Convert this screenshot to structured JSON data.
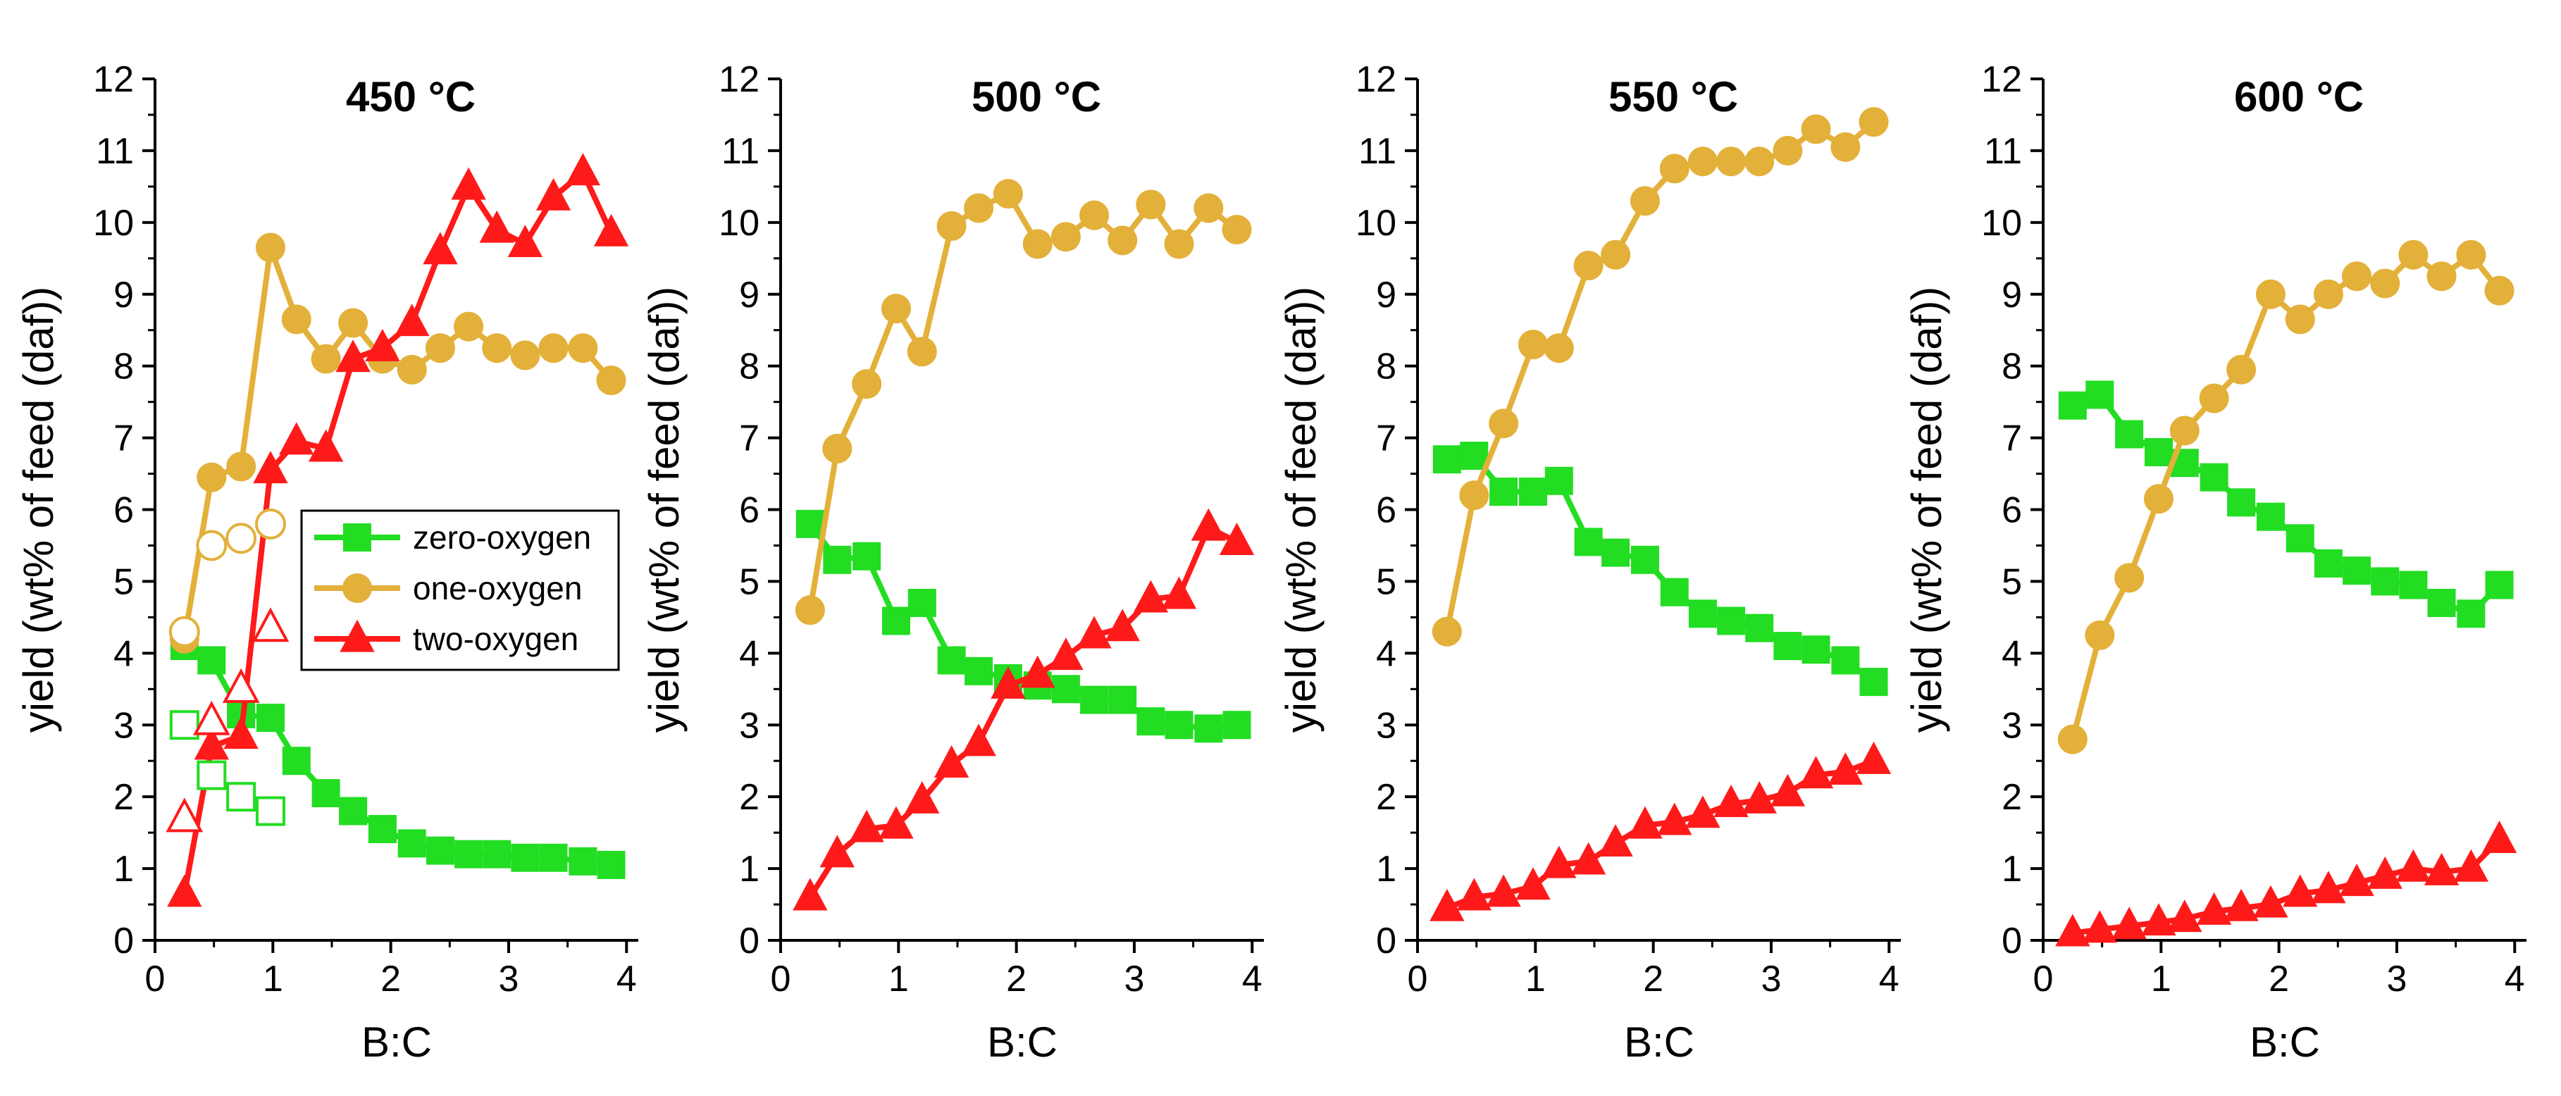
{
  "chart_data": [
    {
      "type": "line",
      "title": "450 °C",
      "xlabel": "B:C",
      "ylabel": "yield (wt% of feed (daf))",
      "xlim": [
        0,
        4.1
      ],
      "ylim": [
        0,
        12
      ],
      "xticks": [
        "0",
        "1",
        "2",
        "3",
        "4"
      ],
      "yticks": [
        "0",
        "1",
        "2",
        "3",
        "4",
        "5",
        "6",
        "7",
        "8",
        "9",
        "10",
        "11",
        "12"
      ],
      "legend": {
        "position": "center-left",
        "entries": [
          "zero-oxygen",
          "one-oxygen",
          "two-oxygen"
        ]
      },
      "series": [
        {
          "name": "zero-oxygen",
          "color": "#22dd22",
          "marker": "square",
          "x": [
            0.25,
            0.48,
            0.73,
            0.98,
            1.2,
            1.45,
            1.68,
            1.93,
            2.18,
            2.42,
            2.66,
            2.9,
            3.14,
            3.38,
            3.63,
            3.87
          ],
          "y": [
            4.1,
            3.9,
            3.15,
            3.1,
            2.5,
            2.05,
            1.8,
            1.55,
            1.35,
            1.25,
            1.2,
            1.2,
            1.15,
            1.15,
            1.1,
            1.05
          ]
        },
        {
          "name": "one-oxygen",
          "color": "#e3b03a",
          "marker": "circle",
          "x": [
            0.25,
            0.48,
            0.73,
            0.98,
            1.2,
            1.45,
            1.68,
            1.93,
            2.18,
            2.42,
            2.66,
            2.9,
            3.14,
            3.38,
            3.63,
            3.87
          ],
          "y": [
            4.2,
            6.45,
            6.6,
            9.65,
            8.65,
            8.1,
            8.6,
            8.1,
            7.95,
            8.25,
            8.55,
            8.25,
            8.15,
            8.25,
            8.25,
            7.8
          ]
        },
        {
          "name": "two-oxygen",
          "color": "#ff1a1a",
          "marker": "triangle",
          "x": [
            0.25,
            0.48,
            0.73,
            0.98,
            1.2,
            1.45,
            1.68,
            1.93,
            2.18,
            2.42,
            2.66,
            2.9,
            3.14,
            3.38,
            3.63,
            3.87
          ],
          "y": [
            0.65,
            2.7,
            2.85,
            6.55,
            6.95,
            6.85,
            8.1,
            8.25,
            8.6,
            9.6,
            10.5,
            9.9,
            9.7,
            10.35,
            10.7,
            9.85
          ]
        },
        {
          "name": "zero-oxygen (open)",
          "color": "#22dd22",
          "marker": "square",
          "hollow": true,
          "x": [
            0.25,
            0.48,
            0.73,
            0.98
          ],
          "y": [
            3.0,
            2.3,
            2.0,
            1.8
          ]
        },
        {
          "name": "one-oxygen (open)",
          "color": "#e3b03a",
          "marker": "circle",
          "hollow": true,
          "x": [
            0.25,
            0.48,
            0.73,
            0.98
          ],
          "y": [
            4.3,
            5.5,
            5.6,
            5.8
          ]
        },
        {
          "name": "two-oxygen (open)",
          "color": "#ff1a1a",
          "marker": "triangle",
          "hollow": true,
          "x": [
            0.25,
            0.48,
            0.73,
            0.98
          ],
          "y": [
            1.7,
            3.05,
            3.5,
            4.35
          ]
        }
      ]
    },
    {
      "type": "line",
      "title": "500 °C",
      "xlabel": "B:C",
      "ylabel": "yield (wt% of feed (daf))",
      "xlim": [
        0,
        4.1
      ],
      "ylim": [
        0,
        12
      ],
      "xticks": [
        "0",
        "1",
        "2",
        "3",
        "4"
      ],
      "yticks": [
        "0",
        "1",
        "2",
        "3",
        "4",
        "5",
        "6",
        "7",
        "8",
        "9",
        "10",
        "11",
        "12"
      ],
      "series": [
        {
          "name": "zero-oxygen",
          "color": "#22dd22",
          "marker": "square",
          "x": [
            0.25,
            0.48,
            0.73,
            0.98,
            1.2,
            1.45,
            1.68,
            1.93,
            2.18,
            2.42,
            2.66,
            2.9,
            3.14,
            3.38,
            3.63,
            3.87
          ],
          "y": [
            5.8,
            5.3,
            5.35,
            4.45,
            4.7,
            3.9,
            3.75,
            3.65,
            3.55,
            3.5,
            3.35,
            3.35,
            3.05,
            3.0,
            2.95,
            3.0
          ]
        },
        {
          "name": "one-oxygen",
          "color": "#e3b03a",
          "marker": "circle",
          "x": [
            0.25,
            0.48,
            0.73,
            0.98,
            1.2,
            1.45,
            1.68,
            1.93,
            2.18,
            2.42,
            2.66,
            2.9,
            3.14,
            3.38,
            3.63,
            3.87
          ],
          "y": [
            4.6,
            6.85,
            7.75,
            8.8,
            8.2,
            9.95,
            10.2,
            10.4,
            9.7,
            9.8,
            10.1,
            9.75,
            10.25,
            9.7,
            10.2,
            9.9
          ]
        },
        {
          "name": "two-oxygen",
          "color": "#ff1a1a",
          "marker": "triangle",
          "x": [
            0.25,
            0.48,
            0.73,
            0.98,
            1.2,
            1.45,
            1.68,
            1.93,
            2.18,
            2.42,
            2.66,
            2.9,
            3.14,
            3.38,
            3.63,
            3.87
          ],
          "y": [
            0.6,
            1.2,
            1.55,
            1.6,
            1.95,
            2.45,
            2.75,
            3.55,
            3.7,
            3.95,
            4.25,
            4.35,
            4.75,
            4.8,
            5.75,
            5.55
          ]
        }
      ]
    },
    {
      "type": "line",
      "title": "550 °C",
      "xlabel": "B:C",
      "ylabel": "yield (wt% of feed (daf))",
      "xlim": [
        0,
        4.1
      ],
      "ylim": [
        0,
        12
      ],
      "xticks": [
        "0",
        "1",
        "2",
        "3",
        "4"
      ],
      "yticks": [
        "0",
        "1",
        "2",
        "3",
        "4",
        "5",
        "6",
        "7",
        "8",
        "9",
        "10",
        "11",
        "12"
      ],
      "series": [
        {
          "name": "zero-oxygen",
          "color": "#22dd22",
          "marker": "square",
          "x": [
            0.25,
            0.48,
            0.73,
            0.98,
            1.2,
            1.45,
            1.68,
            1.93,
            2.18,
            2.42,
            2.66,
            2.9,
            3.14,
            3.38,
            3.63,
            3.87
          ],
          "y": [
            6.7,
            6.75,
            6.25,
            6.25,
            6.4,
            5.55,
            5.4,
            5.3,
            4.85,
            4.55,
            4.45,
            4.35,
            4.1,
            4.05,
            3.9,
            3.6
          ]
        },
        {
          "name": "one-oxygen",
          "color": "#e3b03a",
          "marker": "circle",
          "x": [
            0.25,
            0.48,
            0.73,
            0.98,
            1.2,
            1.45,
            1.68,
            1.93,
            2.18,
            2.42,
            2.66,
            2.9,
            3.14,
            3.38,
            3.63,
            3.87
          ],
          "y": [
            4.3,
            6.2,
            7.2,
            8.3,
            8.25,
            9.4,
            9.55,
            10.3,
            10.75,
            10.85,
            10.85,
            10.85,
            11.0,
            11.3,
            11.05,
            11.4
          ]
        },
        {
          "name": "two-oxygen",
          "color": "#ff1a1a",
          "marker": "triangle",
          "x": [
            0.25,
            0.48,
            0.73,
            0.98,
            1.2,
            1.45,
            1.68,
            1.93,
            2.18,
            2.42,
            2.66,
            2.9,
            3.14,
            3.38,
            3.63,
            3.87
          ],
          "y": [
            0.45,
            0.6,
            0.65,
            0.75,
            1.05,
            1.1,
            1.35,
            1.6,
            1.65,
            1.75,
            1.9,
            1.95,
            2.05,
            2.3,
            2.35,
            2.5
          ]
        }
      ]
    },
    {
      "type": "line",
      "title": "600 °C",
      "xlabel": "B:C",
      "ylabel": "yield (wt% of feed (daf))",
      "xlim": [
        0,
        4.1
      ],
      "ylim": [
        0,
        12
      ],
      "xticks": [
        "0",
        "1",
        "2",
        "3",
        "4"
      ],
      "yticks": [
        "0",
        "1",
        "2",
        "3",
        "4",
        "5",
        "6",
        "7",
        "8",
        "9",
        "10",
        "11",
        "12"
      ],
      "series": [
        {
          "name": "zero-oxygen",
          "color": "#22dd22",
          "marker": "square",
          "x": [
            0.25,
            0.48,
            0.73,
            0.98,
            1.2,
            1.45,
            1.68,
            1.93,
            2.18,
            2.42,
            2.66,
            2.9,
            3.14,
            3.38,
            3.63,
            3.87
          ],
          "y": [
            7.45,
            7.6,
            7.05,
            6.8,
            6.65,
            6.45,
            6.1,
            5.9,
            5.6,
            5.25,
            5.15,
            5.0,
            4.95,
            4.7,
            4.55,
            4.95
          ]
        },
        {
          "name": "one-oxygen",
          "color": "#e3b03a",
          "marker": "circle",
          "x": [
            0.25,
            0.48,
            0.73,
            0.98,
            1.2,
            1.45,
            1.68,
            1.93,
            2.18,
            2.42,
            2.66,
            2.9,
            3.14,
            3.38,
            3.63,
            3.87
          ],
          "y": [
            2.8,
            4.25,
            5.05,
            6.15,
            7.1,
            7.55,
            7.95,
            9.0,
            8.65,
            9.0,
            9.25,
            9.15,
            9.55,
            9.25,
            9.55,
            9.05
          ]
        },
        {
          "name": "two-oxygen",
          "color": "#ff1a1a",
          "marker": "triangle",
          "x": [
            0.25,
            0.48,
            0.73,
            0.98,
            1.2,
            1.45,
            1.68,
            1.93,
            2.18,
            2.42,
            2.66,
            2.9,
            3.14,
            3.38,
            3.63,
            3.87
          ],
          "y": [
            0.1,
            0.15,
            0.2,
            0.25,
            0.3,
            0.4,
            0.45,
            0.5,
            0.65,
            0.7,
            0.8,
            0.9,
            1.0,
            0.95,
            1.0,
            1.4
          ]
        }
      ]
    }
  ]
}
